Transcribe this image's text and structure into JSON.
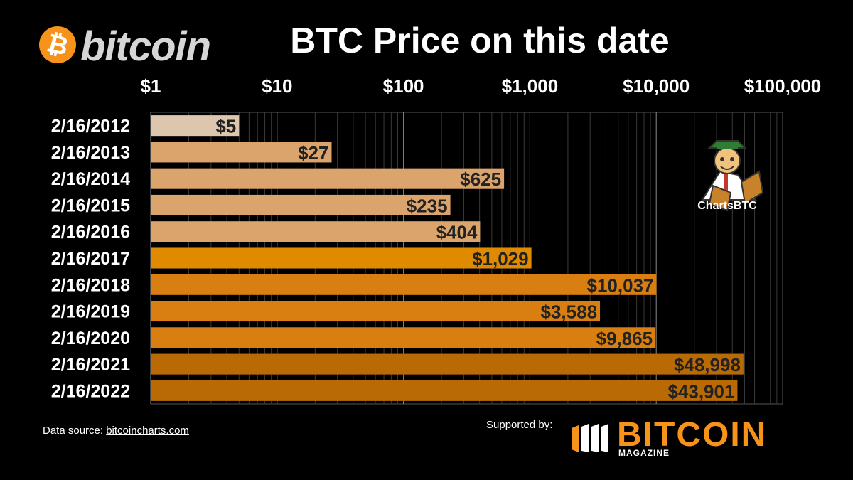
{
  "header": {
    "logo_text": "bitcoin",
    "logo_symbol": "₿"
  },
  "chart_data": {
    "type": "bar",
    "orientation": "horizontal",
    "title": "BTC Price on this date",
    "x_scale": "log",
    "xlim": [
      1,
      100000
    ],
    "x_ticks": [
      "$1",
      "$10",
      "$100",
      "$1,000",
      "$10,000",
      "$100,000"
    ],
    "grid": true,
    "categories": [
      "2/16/2012",
      "2/16/2013",
      "2/16/2014",
      "2/16/2015",
      "2/16/2016",
      "2/16/2017",
      "2/16/2018",
      "2/16/2019",
      "2/16/2020",
      "2/16/2021",
      "2/16/2022"
    ],
    "values": [
      5,
      27,
      625,
      235,
      404,
      1029,
      10037,
      3588,
      9865,
      48998,
      43901
    ],
    "value_labels": [
      "$5",
      "$27",
      "$625",
      "$235",
      "$404",
      "$1,029",
      "$10,037",
      "$3,588",
      "$9,865",
      "$48,998",
      "$43,901"
    ],
    "colors": [
      "#dcc6ad",
      "#dba46c",
      "#dba46c",
      "#dba46c",
      "#dba46c",
      "#e08a00",
      "#d97f12",
      "#d97f12",
      "#d97f12",
      "#b96a05",
      "#b96a05"
    ]
  },
  "mascot": {
    "label": "ChartsBTC"
  },
  "footer": {
    "source_prefix": "Data source:",
    "source_link": "bitcoincharts.com",
    "supported_by": "Supported by:",
    "sponsor_name": "BITCOIN",
    "sponsor_sub": "MAGAZINE"
  }
}
